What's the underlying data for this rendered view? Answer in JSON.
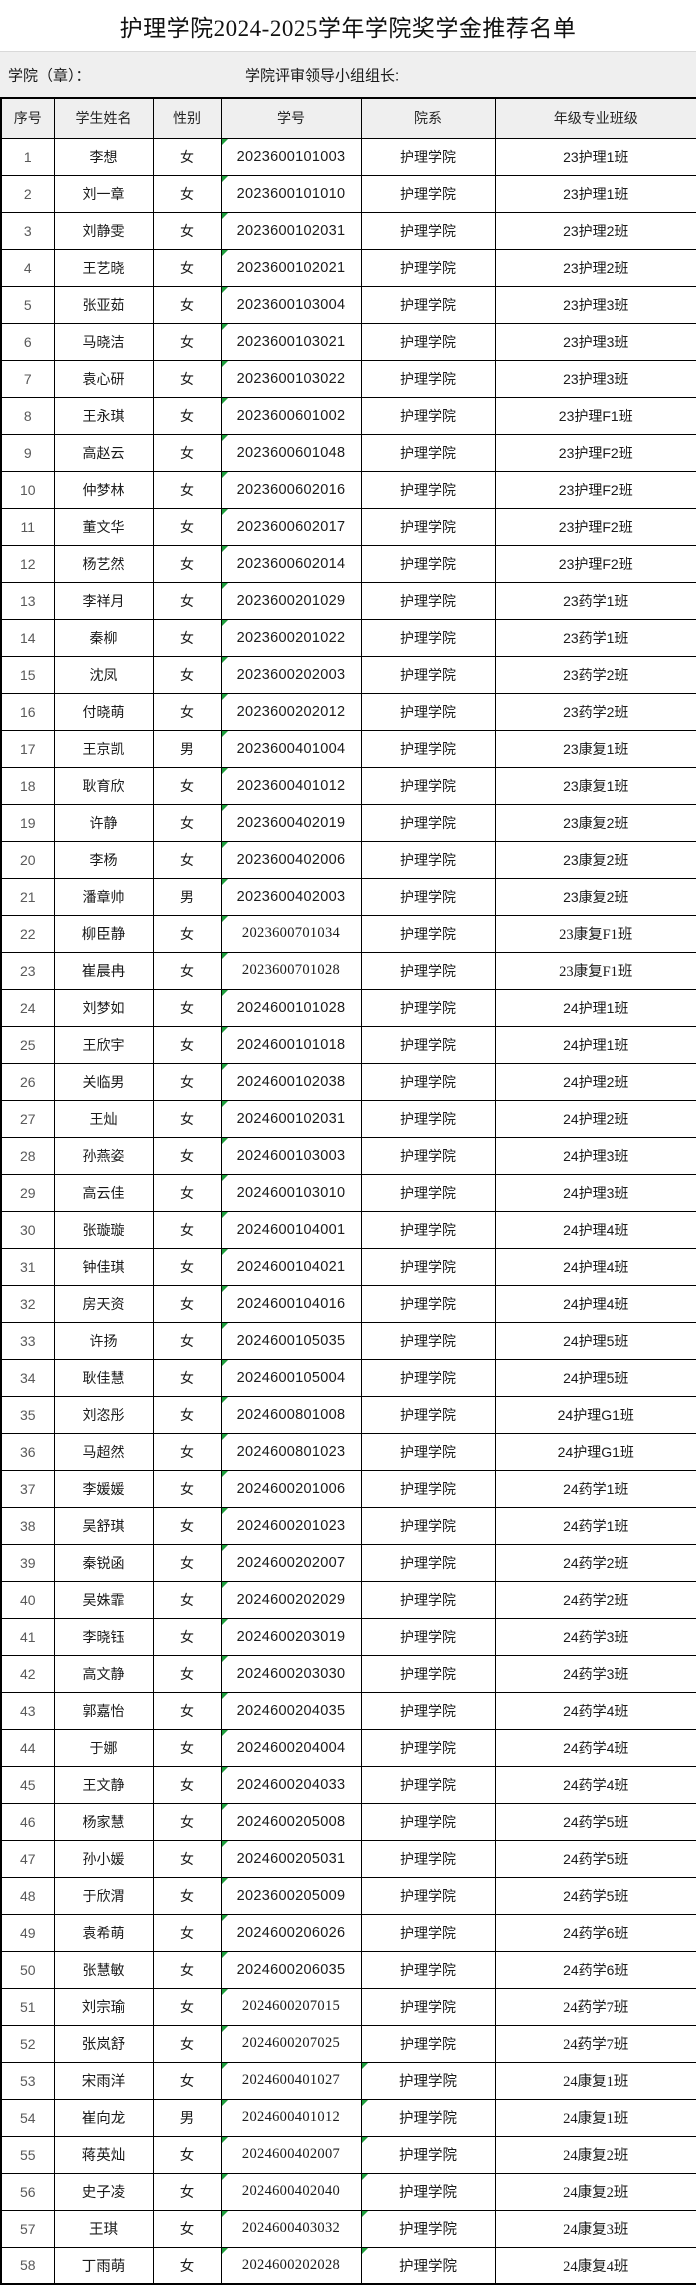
{
  "page": {
    "title": "护理学院2024-2025学年学院奖学金推荐名单"
  },
  "info": {
    "left_label": "学院（章）：",
    "right_label": "学院评审领导小组组长:"
  },
  "colors": {
    "band_fill": "#efefef",
    "header_fill": "#efefef",
    "grid_line": "#000000",
    "corner_marker_green": "#1e9e3c",
    "body_text": "#1a1a1a",
    "row_number_text": "#595959"
  },
  "icons": {
    "corner_marker": "green-corner-icon"
  },
  "table": {
    "headers": [
      "序号",
      "学生姓名",
      "性别",
      "学号",
      "院系",
      "年级专业班级"
    ],
    "rows": [
      {
        "no": "1",
        "name": "李想",
        "gender": "女",
        "id": "2023600101003",
        "dept": "护理学院",
        "cls": "23护理1班",
        "sf": 0,
        "dc": false
      },
      {
        "no": "2",
        "name": "刘一章",
        "gender": "女",
        "id": "2023600101010",
        "dept": "护理学院",
        "cls": "23护理1班",
        "sf": 0,
        "dc": false
      },
      {
        "no": "3",
        "name": "刘静雯",
        "gender": "女",
        "id": "2023600102031",
        "dept": "护理学院",
        "cls": "23护理2班",
        "sf": 0,
        "dc": false
      },
      {
        "no": "4",
        "name": "王艺晓",
        "gender": "女",
        "id": "2023600102021",
        "dept": "护理学院",
        "cls": "23护理2班",
        "sf": 0,
        "dc": false
      },
      {
        "no": "5",
        "name": "张亚茹",
        "gender": "女",
        "id": "2023600103004",
        "dept": "护理学院",
        "cls": "23护理3班",
        "sf": 0,
        "dc": false
      },
      {
        "no": "6",
        "name": "马晓洁",
        "gender": "女",
        "id": "2023600103021",
        "dept": "护理学院",
        "cls": "23护理3班",
        "sf": 0,
        "dc": false
      },
      {
        "no": "7",
        "name": "袁心研",
        "gender": "女",
        "id": "2023600103022",
        "dept": "护理学院",
        "cls": "23护理3班",
        "sf": 0,
        "dc": false
      },
      {
        "no": "8",
        "name": "王永琪",
        "gender": "女",
        "id": "2023600601002",
        "dept": "护理学院",
        "cls": "23护理F1班",
        "sf": 0,
        "dc": false
      },
      {
        "no": "9",
        "name": "高赵云",
        "gender": "女",
        "id": "2023600601048",
        "dept": "护理学院",
        "cls": "23护理F2班",
        "sf": 0,
        "dc": false
      },
      {
        "no": "10",
        "name": "仲梦林",
        "gender": "女",
        "id": "2023600602016",
        "dept": "护理学院",
        "cls": "23护理F2班",
        "sf": 0,
        "dc": false
      },
      {
        "no": "11",
        "name": "董文华",
        "gender": "女",
        "id": "2023600602017",
        "dept": "护理学院",
        "cls": "23护理F2班",
        "sf": 0,
        "dc": false
      },
      {
        "no": "12",
        "name": "杨艺然",
        "gender": "女",
        "id": "2023600602014",
        "dept": "护理学院",
        "cls": "23护理F2班",
        "sf": 0,
        "dc": false
      },
      {
        "no": "13",
        "name": "李祥月",
        "gender": "女",
        "id": "2023600201029",
        "dept": "护理学院",
        "cls": "23药学1班",
        "sf": 0,
        "dc": false
      },
      {
        "no": "14",
        "name": "秦柳",
        "gender": "女",
        "id": "2023600201022",
        "dept": "护理学院",
        "cls": "23药学1班",
        "sf": 0,
        "dc": false
      },
      {
        "no": "15",
        "name": "沈凤",
        "gender": "女",
        "id": "2023600202003",
        "dept": "护理学院",
        "cls": "23药学2班",
        "sf": 0,
        "dc": false
      },
      {
        "no": "16",
        "name": "付晓萌",
        "gender": "女",
        "id": "2023600202012",
        "dept": "护理学院",
        "cls": "23药学2班",
        "sf": 0,
        "dc": false
      },
      {
        "no": "17",
        "name": "王京凯",
        "gender": "男",
        "id": "2023600401004",
        "dept": "护理学院",
        "cls": "23康复1班",
        "sf": 0,
        "dc": false
      },
      {
        "no": "18",
        "name": "耿育欣",
        "gender": "女",
        "id": "2023600401012",
        "dept": "护理学院",
        "cls": "23康复1班",
        "sf": 0,
        "dc": false
      },
      {
        "no": "19",
        "name": "许静",
        "gender": "女",
        "id": "2023600402019",
        "dept": "护理学院",
        "cls": "23康复2班",
        "sf": 0,
        "dc": false
      },
      {
        "no": "20",
        "name": "李杨",
        "gender": "女",
        "id": "2023600402006",
        "dept": "护理学院",
        "cls": "23康复2班",
        "sf": 0,
        "dc": false
      },
      {
        "no": "21",
        "name": "潘章帅",
        "gender": "男",
        "id": "2023600402003",
        "dept": "护理学院",
        "cls": "23康复2班",
        "sf": 0,
        "dc": false
      },
      {
        "no": "22",
        "name": "柳臣静",
        "gender": "女",
        "id": "2023600701034",
        "dept": "护理学院",
        "cls": "23康复F1班",
        "sf": 1,
        "dc": false
      },
      {
        "no": "23",
        "name": "崔晨冉",
        "gender": "女",
        "id": "2023600701028",
        "dept": "护理学院",
        "cls": "23康复F1班",
        "sf": 1,
        "dc": false
      },
      {
        "no": "24",
        "name": "刘梦如",
        "gender": "女",
        "id": "2024600101028",
        "dept": "护理学院",
        "cls": "24护理1班",
        "sf": 0,
        "dc": false
      },
      {
        "no": "25",
        "name": "王欣宇",
        "gender": "女",
        "id": "2024600101018",
        "dept": "护理学院",
        "cls": "24护理1班",
        "sf": 0,
        "dc": false
      },
      {
        "no": "26",
        "name": "关临男",
        "gender": "女",
        "id": "2024600102038",
        "dept": "护理学院",
        "cls": "24护理2班",
        "sf": 0,
        "dc": false
      },
      {
        "no": "27",
        "name": "王灿",
        "gender": "女",
        "id": "2024600102031",
        "dept": "护理学院",
        "cls": "24护理2班",
        "sf": 0,
        "dc": false
      },
      {
        "no": "28",
        "name": "孙燕姿",
        "gender": "女",
        "id": "2024600103003",
        "dept": "护理学院",
        "cls": "24护理3班",
        "sf": 0,
        "dc": false
      },
      {
        "no": "29",
        "name": "高云佳",
        "gender": "女",
        "id": "2024600103010",
        "dept": "护理学院",
        "cls": "24护理3班",
        "sf": 0,
        "dc": false
      },
      {
        "no": "30",
        "name": "张璇璇",
        "gender": "女",
        "id": "2024600104001",
        "dept": "护理学院",
        "cls": "24护理4班",
        "sf": 0,
        "dc": false
      },
      {
        "no": "31",
        "name": "钟佳琪",
        "gender": "女",
        "id": "2024600104021",
        "dept": "护理学院",
        "cls": "24护理4班",
        "sf": 0,
        "dc": false
      },
      {
        "no": "32",
        "name": "房天资",
        "gender": "女",
        "id": "2024600104016",
        "dept": "护理学院",
        "cls": "24护理4班",
        "sf": 0,
        "dc": false
      },
      {
        "no": "33",
        "name": "许扬",
        "gender": "女",
        "id": "2024600105035",
        "dept": "护理学院",
        "cls": "24护理5班",
        "sf": 0,
        "dc": false
      },
      {
        "no": "34",
        "name": "耿佳慧",
        "gender": "女",
        "id": "2024600105004",
        "dept": "护理学院",
        "cls": "24护理5班",
        "sf": 0,
        "dc": false
      },
      {
        "no": "35",
        "name": "刘恣彤",
        "gender": "女",
        "id": "2024600801008",
        "dept": "护理学院",
        "cls": "24护理G1班",
        "sf": 0,
        "dc": false
      },
      {
        "no": "36",
        "name": "马超然",
        "gender": "女",
        "id": "2024600801023",
        "dept": "护理学院",
        "cls": "24护理G1班",
        "sf": 0,
        "dc": false
      },
      {
        "no": "37",
        "name": "李媛媛",
        "gender": "女",
        "id": "2024600201006",
        "dept": "护理学院",
        "cls": "24药学1班",
        "sf": 0,
        "dc": false
      },
      {
        "no": "38",
        "name": "吴舒琪",
        "gender": "女",
        "id": "2024600201023",
        "dept": "护理学院",
        "cls": "24药学1班",
        "sf": 0,
        "dc": false
      },
      {
        "no": "39",
        "name": "秦锐函",
        "gender": "女",
        "id": "2024600202007",
        "dept": "护理学院",
        "cls": "24药学2班",
        "sf": 0,
        "dc": false
      },
      {
        "no": "40",
        "name": "吴姝霏",
        "gender": "女",
        "id": "2024600202029",
        "dept": "护理学院",
        "cls": "24药学2班",
        "sf": 0,
        "dc": false
      },
      {
        "no": "41",
        "name": "李晓钰",
        "gender": "女",
        "id": "2024600203019",
        "dept": "护理学院",
        "cls": "24药学3班",
        "sf": 0,
        "dc": false
      },
      {
        "no": "42",
        "name": "高文静",
        "gender": "女",
        "id": "2024600203030",
        "dept": "护理学院",
        "cls": "24药学3班",
        "sf": 0,
        "dc": false
      },
      {
        "no": "43",
        "name": "郭嘉怡",
        "gender": "女",
        "id": "2024600204035",
        "dept": "护理学院",
        "cls": "24药学4班",
        "sf": 0,
        "dc": false
      },
      {
        "no": "44",
        "name": "于娜",
        "gender": "女",
        "id": "2024600204004",
        "dept": "护理学院",
        "cls": "24药学4班",
        "sf": 0,
        "dc": false
      },
      {
        "no": "45",
        "name": "王文静",
        "gender": "女",
        "id": "2024600204033",
        "dept": "护理学院",
        "cls": "24药学4班",
        "sf": 0,
        "dc": false
      },
      {
        "no": "46",
        "name": "杨家慧",
        "gender": "女",
        "id": "2024600205008",
        "dept": "护理学院",
        "cls": "24药学5班",
        "sf": 0,
        "dc": false
      },
      {
        "no": "47",
        "name": "孙小媛",
        "gender": "女",
        "id": "2024600205031",
        "dept": "护理学院",
        "cls": "24药学5班",
        "sf": 0,
        "dc": false
      },
      {
        "no": "48",
        "name": "于欣渭",
        "gender": "女",
        "id": "2023600205009",
        "dept": "护理学院",
        "cls": "24药学5班",
        "sf": 0,
        "dc": false
      },
      {
        "no": "49",
        "name": "袁希萌",
        "gender": "女",
        "id": "2024600206026",
        "dept": "护理学院",
        "cls": "24药学6班",
        "sf": 0,
        "dc": false
      },
      {
        "no": "50",
        "name": "张慧敏",
        "gender": "女",
        "id": "2024600206035",
        "dept": "护理学院",
        "cls": "24药学6班",
        "sf": 0,
        "dc": false
      },
      {
        "no": "51",
        "name": "刘宗瑜",
        "gender": "女",
        "id": "2024600207015",
        "dept": "护理学院",
        "cls": "24药学7班",
        "sf": 1,
        "dc": false
      },
      {
        "no": "52",
        "name": "张岚舒",
        "gender": "女",
        "id": "2024600207025",
        "dept": "护理学院",
        "cls": "24药学7班",
        "sf": 1,
        "dc": false
      },
      {
        "no": "53",
        "name": "宋雨洋",
        "gender": "女",
        "id": "2024600401027",
        "dept": "护理学院",
        "cls": "24康复1班",
        "sf": 2,
        "dc": true
      },
      {
        "no": "54",
        "name": "崔向龙",
        "gender": "男",
        "id": "2024600401012",
        "dept": "护理学院",
        "cls": "24康复1班",
        "sf": 2,
        "dc": true
      },
      {
        "no": "55",
        "name": "蒋英灿",
        "gender": "女",
        "id": "2024600402007",
        "dept": "护理学院",
        "cls": "24康复2班",
        "sf": 2,
        "dc": true
      },
      {
        "no": "56",
        "name": "史子凌",
        "gender": "女",
        "id": "2024600402040",
        "dept": "护理学院",
        "cls": "24康复2班",
        "sf": 2,
        "dc": true
      },
      {
        "no": "57",
        "name": "王琪",
        "gender": "女",
        "id": "2024600403032",
        "dept": "护理学院",
        "cls": "24康复3班",
        "sf": 2,
        "dc": true
      },
      {
        "no": "58",
        "name": "丁雨萌",
        "gender": "女",
        "id": "2024600202028",
        "dept": "护理学院",
        "cls": "24康复4班",
        "sf": 2,
        "dc": true
      }
    ]
  }
}
